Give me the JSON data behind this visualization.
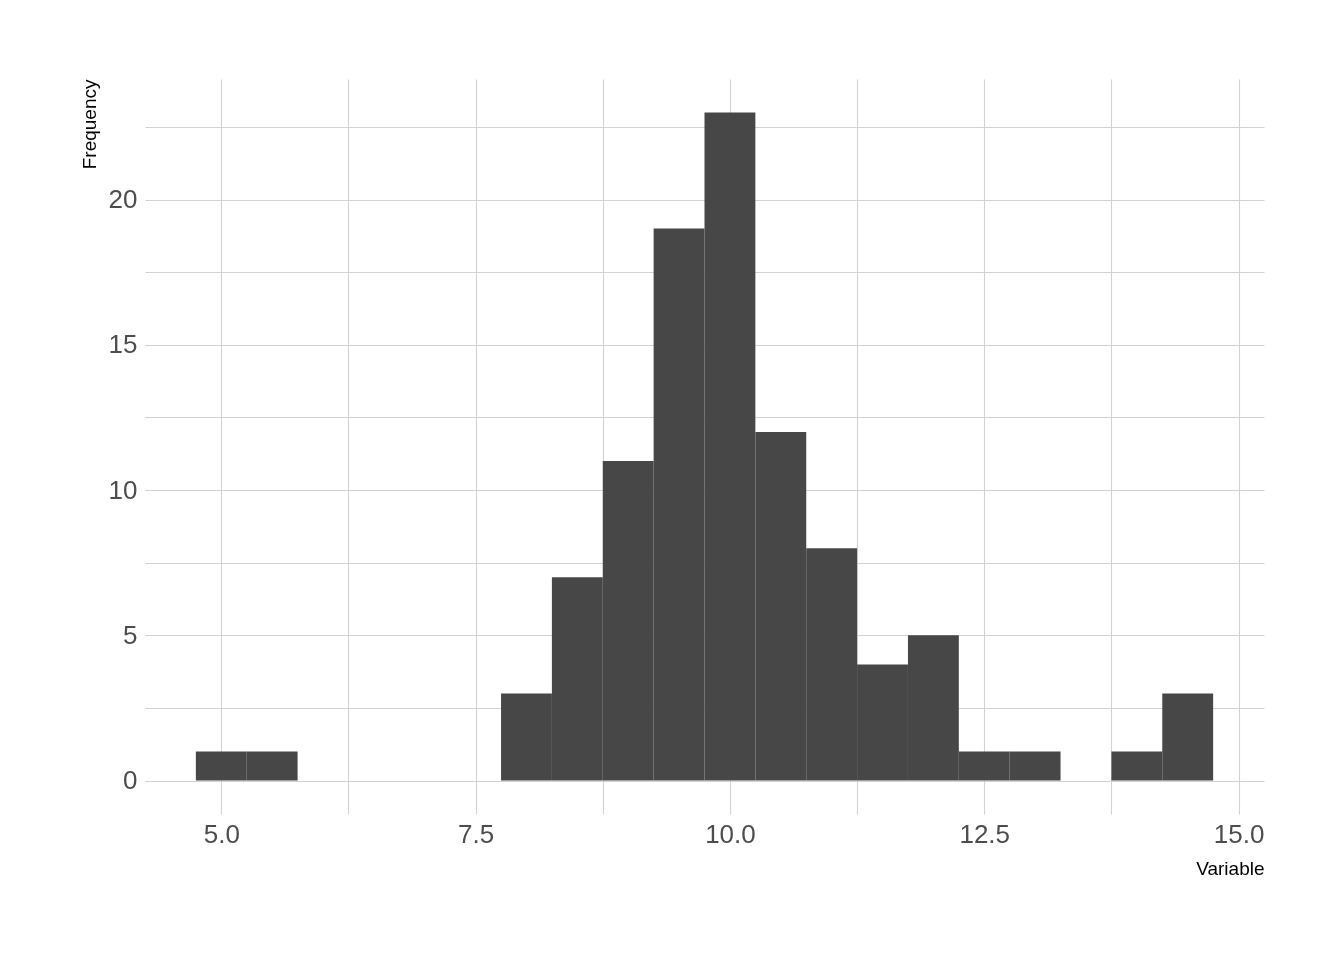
{
  "chart_data": {
    "type": "histogram",
    "xlabel": "Variable",
    "ylabel": "Frequency",
    "color": "#474747",
    "bins": [
      4.75,
      5.25,
      5.75,
      6.25,
      6.75,
      7.25,
      7.75,
      8.25,
      8.75,
      9.25,
      9.75,
      10.25,
      10.75,
      11.25,
      11.75,
      12.25,
      12.75,
      13.25,
      13.75,
      14.25,
      14.75
    ],
    "values": [
      1,
      1,
      0,
      0,
      0,
      0,
      3,
      7,
      11,
      19,
      23,
      12,
      8,
      4,
      5,
      1,
      1,
      0,
      1,
      3
    ],
    "xlim": [
      4.25,
      15.25
    ],
    "ylim": [
      -1.15,
      24.15
    ],
    "xticks": [
      {
        "value": 5,
        "label": "5.0"
      },
      {
        "value": 6.25,
        "label": null
      },
      {
        "value": 7.5,
        "label": "7.5"
      },
      {
        "value": 8.75,
        "label": null
      },
      {
        "value": 10,
        "label": "10.0"
      },
      {
        "value": 11.25,
        "label": null
      },
      {
        "value": 12.5,
        "label": "12.5"
      },
      {
        "value": 13.75,
        "label": null
      },
      {
        "value": 15,
        "label": "15.0"
      }
    ],
    "yticks": [
      0,
      {
        "value": 2.5,
        "label": null
      },
      5,
      {
        "value": 7.5,
        "label": null
      },
      10,
      {
        "value": 12.5,
        "label": null
      },
      15,
      {
        "value": 17.5,
        "label": null
      },
      20,
      {
        "value": 22.5,
        "label": null
      }
    ],
    "grid": true
  }
}
